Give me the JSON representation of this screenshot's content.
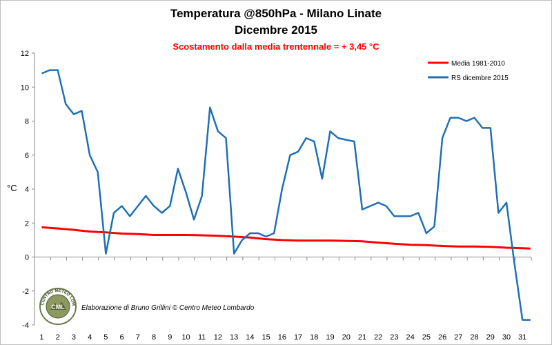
{
  "chart_data": {
    "type": "line",
    "title": "Temperatura @850hPa - Milano Linate",
    "subtitle": "Dicembre 2015",
    "annotation": "Scostamento dalla media trentennale = + 3,45 °C",
    "ylabel": "°C",
    "xlabel": "",
    "ylim": [
      -4,
      12
    ],
    "yticks": [
      -4,
      -2,
      0,
      2,
      4,
      6,
      8,
      10,
      12
    ],
    "xlim": [
      1,
      31.7
    ],
    "xticks": [
      1,
      2,
      3,
      4,
      5,
      6,
      7,
      8,
      9,
      10,
      11,
      12,
      13,
      14,
      15,
      16,
      17,
      18,
      19,
      20,
      21,
      22,
      23,
      24,
      25,
      26,
      27,
      28,
      29,
      30,
      31
    ],
    "grid": false,
    "legend_position": "top-right",
    "series": [
      {
        "name": "Media 1981-2010",
        "color": "#ff0000",
        "x": [
          1,
          2,
          3,
          4,
          5,
          6,
          7,
          8,
          9,
          10,
          11,
          12,
          13,
          14,
          15,
          16,
          17,
          18,
          19,
          20,
          21,
          22,
          23,
          24,
          25,
          26,
          27,
          28,
          29,
          30,
          31,
          31.5
        ],
        "values": [
          1.75,
          1.68,
          1.6,
          1.5,
          1.45,
          1.38,
          1.35,
          1.3,
          1.3,
          1.3,
          1.28,
          1.25,
          1.2,
          1.15,
          1.05,
          1.0,
          0.97,
          0.97,
          0.97,
          0.95,
          0.92,
          0.85,
          0.78,
          0.72,
          0.7,
          0.65,
          0.62,
          0.62,
          0.6,
          0.55,
          0.52,
          0.5
        ]
      },
      {
        "name": "RS dicembre 2015",
        "color": "#1f6fb5",
        "x": [
          1,
          1.5,
          2,
          2.5,
          3,
          3.5,
          4,
          4.5,
          5,
          5.5,
          6,
          6.5,
          7,
          7.5,
          8,
          8.5,
          9,
          9.5,
          10,
          10.5,
          11,
          11.5,
          12,
          12.5,
          13,
          13.5,
          14,
          14.5,
          15,
          15.5,
          16,
          16.5,
          17,
          17.5,
          18,
          18.5,
          19,
          19.5,
          20,
          20.5,
          21,
          21.5,
          22,
          22.5,
          23,
          23.5,
          24,
          24.5,
          25,
          25.5,
          26,
          26.5,
          27,
          27.5,
          28,
          28.5,
          29,
          29.5,
          30,
          30.5,
          31,
          31.5
        ],
        "values": [
          10.8,
          11.0,
          11.0,
          9.0,
          8.4,
          8.6,
          6.0,
          5.0,
          0.2,
          2.6,
          3.0,
          2.4,
          3.0,
          3.6,
          3.0,
          2.6,
          3.0,
          5.2,
          3.8,
          2.2,
          3.6,
          8.8,
          7.4,
          7.0,
          0.2,
          1.0,
          1.4,
          1.4,
          1.2,
          1.4,
          4.0,
          6.0,
          6.2,
          7.0,
          6.8,
          4.6,
          7.4,
          7.0,
          6.9,
          6.8,
          2.8,
          3.0,
          3.2,
          3.0,
          2.4,
          2.4,
          2.4,
          2.6,
          1.4,
          1.8,
          7.0,
          8.2,
          8.2,
          8.0,
          8.2,
          7.6,
          7.6,
          2.6,
          3.2,
          -0.4,
          -3.7,
          -3.7
        ]
      }
    ]
  },
  "credit": {
    "text": "Elaborazione di Bruno Grillini  ©  Centro Meteo Lombardo",
    "logo_text": "CENTRO METEO LOMBARDO",
    "logo_initials": "CML"
  },
  "colors": {
    "mean_line": "#ff0000",
    "observed_line": "#1f6fb5",
    "subtitle": "#ff0000"
  }
}
